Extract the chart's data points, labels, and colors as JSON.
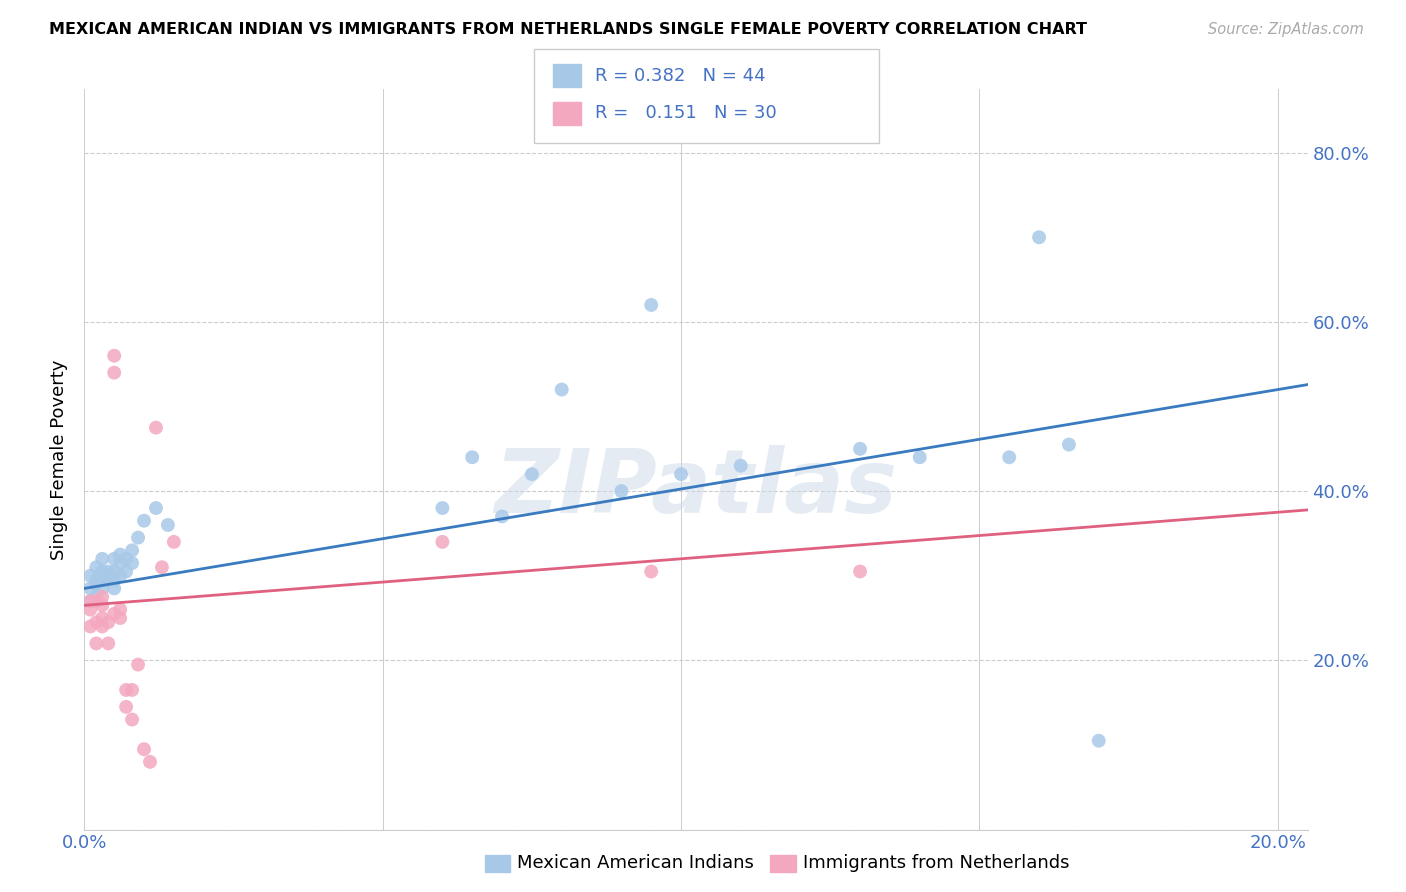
{
  "title": "MEXICAN AMERICAN INDIAN VS IMMIGRANTS FROM NETHERLANDS SINGLE FEMALE POVERTY CORRELATION CHART",
  "source": "Source: ZipAtlas.com",
  "ylabel": "Single Female Poverty",
  "x_min": 0.0,
  "x_max": 0.205,
  "y_min": 0.0,
  "y_max": 0.875,
  "x_ticks": [
    0.0,
    0.05,
    0.1,
    0.15,
    0.2
  ],
  "x_tick_labels": [
    "0.0%",
    "",
    "",
    "",
    "20.0%"
  ],
  "y_ticks": [
    0.0,
    0.2,
    0.4,
    0.6,
    0.8
  ],
  "y_tick_labels_right": [
    "",
    "20.0%",
    "40.0%",
    "60.0%",
    "80.0%"
  ],
  "blue_label": "Mexican American Indians",
  "pink_label": "Immigrants from Netherlands",
  "blue_R": "0.382",
  "blue_N": "44",
  "pink_R": "0.151",
  "pink_N": "30",
  "blue_dot_color": "#a8c8e8",
  "pink_dot_color": "#f4a8c0",
  "blue_line_color": "#3a7abf",
  "pink_line_color": "#e06080",
  "axis_label_color": "#4472c4",
  "grid_color": "#cccccc",
  "watermark": "ZIPatlas",
  "blue_x": [
    0.001,
    0.001,
    0.001,
    0.002,
    0.002,
    0.002,
    0.002,
    0.003,
    0.003,
    0.003,
    0.003,
    0.004,
    0.004,
    0.004,
    0.005,
    0.005,
    0.005,
    0.005,
    0.006,
    0.006,
    0.006,
    0.007,
    0.007,
    0.008,
    0.008,
    0.009,
    0.01,
    0.012,
    0.014,
    0.06,
    0.065,
    0.07,
    0.075,
    0.08,
    0.09,
    0.095,
    0.1,
    0.11,
    0.13,
    0.14,
    0.155,
    0.16,
    0.165,
    0.17
  ],
  "blue_y": [
    0.27,
    0.285,
    0.3,
    0.275,
    0.29,
    0.295,
    0.31,
    0.285,
    0.295,
    0.305,
    0.32,
    0.295,
    0.305,
    0.3,
    0.285,
    0.295,
    0.305,
    0.32,
    0.3,
    0.315,
    0.325,
    0.305,
    0.32,
    0.33,
    0.315,
    0.345,
    0.365,
    0.38,
    0.36,
    0.38,
    0.44,
    0.37,
    0.42,
    0.52,
    0.4,
    0.62,
    0.42,
    0.43,
    0.45,
    0.44,
    0.44,
    0.7,
    0.455,
    0.105
  ],
  "pink_x": [
    0.001,
    0.001,
    0.001,
    0.002,
    0.002,
    0.002,
    0.003,
    0.003,
    0.003,
    0.003,
    0.004,
    0.004,
    0.005,
    0.005,
    0.005,
    0.006,
    0.006,
    0.007,
    0.007,
    0.008,
    0.008,
    0.009,
    0.01,
    0.011,
    0.012,
    0.013,
    0.015,
    0.06,
    0.095,
    0.13
  ],
  "pink_y": [
    0.24,
    0.26,
    0.27,
    0.22,
    0.245,
    0.27,
    0.24,
    0.25,
    0.265,
    0.275,
    0.22,
    0.245,
    0.54,
    0.56,
    0.255,
    0.25,
    0.26,
    0.145,
    0.165,
    0.13,
    0.165,
    0.195,
    0.095,
    0.08,
    0.475,
    0.31,
    0.34,
    0.34,
    0.305,
    0.305
  ]
}
